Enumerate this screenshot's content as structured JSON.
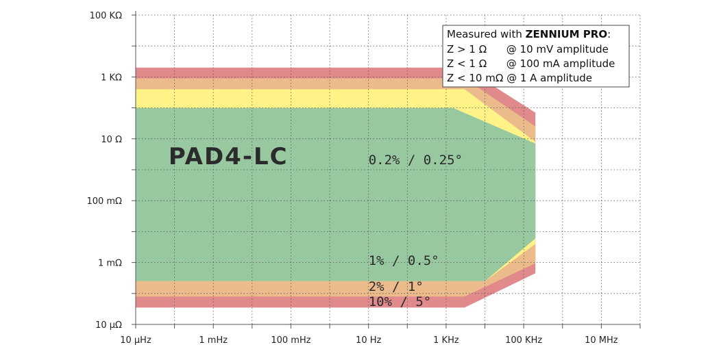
{
  "chart_data": {
    "type": "area",
    "title": "",
    "xlabel": "",
    "ylabel": "",
    "x_scale": "log",
    "y_scale": "log",
    "xlim_hz": [
      1e-05,
      100000000
    ],
    "ylim_ohm": [
      1e-05,
      100000
    ],
    "x_ticks": [
      {
        "value": 1e-05,
        "label": "10 µHz"
      },
      {
        "value": 0.001,
        "label": "1 mHz"
      },
      {
        "value": 0.1,
        "label": "100 mHz"
      },
      {
        "value": 10,
        "label": "10 Hz"
      },
      {
        "value": 1000,
        "label": "1 KHz"
      },
      {
        "value": 100000,
        "label": "100 KHz"
      },
      {
        "value": 10000000,
        "label": "10 MHz"
      }
    ],
    "y_ticks": [
      {
        "value": 100000,
        "label": "100 KΩ"
      },
      {
        "value": 1000,
        "label": "1 KΩ"
      },
      {
        "value": 10,
        "label": "10 Ω"
      },
      {
        "value": 0.1,
        "label": "100 mΩ"
      },
      {
        "value": 0.001,
        "label": "1 mΩ"
      },
      {
        "value": 1e-05,
        "label": "10 µΩ"
      }
    ],
    "grid": true,
    "regions": [
      {
        "label": "10% / 5°",
        "color": "#e08a8c",
        "points": [
          [
            1e-05,
            2000
          ],
          [
            3000,
            2000
          ],
          [
            200000,
            70
          ],
          [
            200000,
            0.00045
          ],
          [
            3000,
            3.5e-05
          ],
          [
            1e-05,
            3.5e-05
          ]
        ]
      },
      {
        "label": "2% / 1°",
        "color": "#ecbb8c",
        "points": [
          [
            1e-05,
            900
          ],
          [
            3000,
            900
          ],
          [
            200000,
            25
          ],
          [
            200000,
            0.00095
          ],
          [
            3000,
            8e-05
          ],
          [
            1e-05,
            8e-05
          ]
        ]
      },
      {
        "label": "1% / 0.5°",
        "color": "#fff287",
        "points": [
          [
            1e-05,
            400
          ],
          [
            3000,
            400
          ],
          [
            200000,
            8
          ],
          [
            200000,
            0.004
          ],
          [
            10000,
            0.00025
          ],
          [
            1e-05,
            0.00025
          ]
        ]
      },
      {
        "label": "0.2% / 0.25°",
        "color": "#98c8a0",
        "points": [
          [
            1e-05,
            100
          ],
          [
            1500,
            100
          ],
          [
            200000,
            7
          ],
          [
            200000,
            0.006
          ],
          [
            10000,
            0.00025
          ],
          [
            1e-05,
            0.00025
          ]
        ]
      }
    ],
    "annotations": [
      {
        "text": "PAD4-LC",
        "x": 7e-05,
        "y": 1.5,
        "style": "model"
      },
      {
        "text": "0.2% / 0.25°",
        "x": 10,
        "y": 1.5,
        "style": "accuracy"
      },
      {
        "text": "1% / 0.5°",
        "x": 10,
        "y": 0.00085,
        "style": "accuracy"
      },
      {
        "text": "2% / 1°",
        "x": 10,
        "y": 0.00012,
        "style": "accuracy"
      },
      {
        "text": "10% / 5°",
        "x": 10,
        "y": 4e-05,
        "style": "accuracy"
      }
    ],
    "legend": {
      "placement": "top-right",
      "title_prefix": "Measured with ",
      "title_bold": "ZENNIUM PRO",
      "title_suffix": ":",
      "lines": [
        "Z > 1 Ω      @ 10 mV amplitude",
        "Z < 1 Ω      @ 100 mA amplitude",
        "Z < 10 mΩ @ 1 A amplitude"
      ]
    },
    "colors": {
      "grid": "#555555",
      "axis": "#555555",
      "legend_border": "#444444"
    }
  }
}
